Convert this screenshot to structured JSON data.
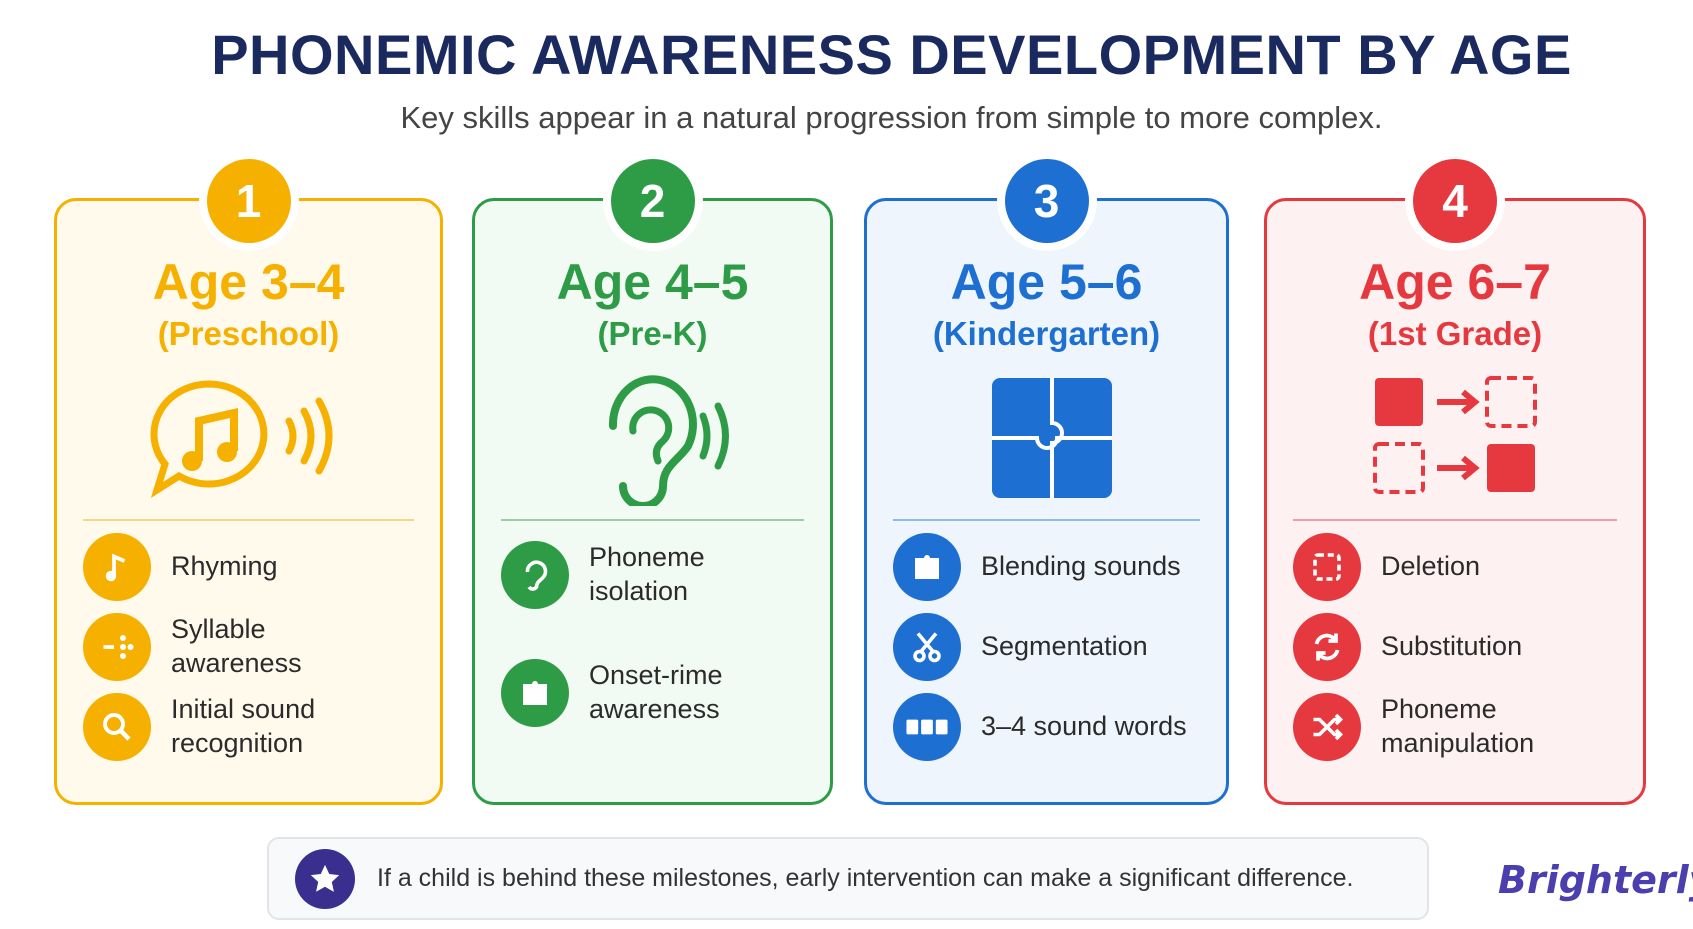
{
  "header": {
    "title": "PHONEMIC AWARENESS DEVELOPMENT BY AGE",
    "subtitle": "Key skills appear in a natural progression from simple to more complex."
  },
  "stages": [
    {
      "number": 1,
      "age": "Age 3–4",
      "grade": "(Preschool)",
      "skills": [
        "Rhyming",
        "Syllable awareness",
        "Initial sound recognition"
      ]
    },
    {
      "number": 2,
      "age": "Age 4–5",
      "grade": "(Pre-K)",
      "skills": [
        "Phoneme isolation",
        "Onset-rime awareness"
      ]
    },
    {
      "number": 3,
      "age": "Age 5–6",
      "grade": "(Kindergarten)",
      "skills": [
        "Blending sounds",
        "Segmentation",
        "3–4 sound words"
      ]
    },
    {
      "number": 4,
      "age": "Age 6–7",
      "grade": "(1st Grade)",
      "skills": [
        "Deletion",
        "Substitution",
        "Phoneme manipulation"
      ]
    }
  ],
  "footer": {
    "note": "If a child is behind these milestones, early intervention can make a significant difference.",
    "brand": "Brighterly"
  }
}
